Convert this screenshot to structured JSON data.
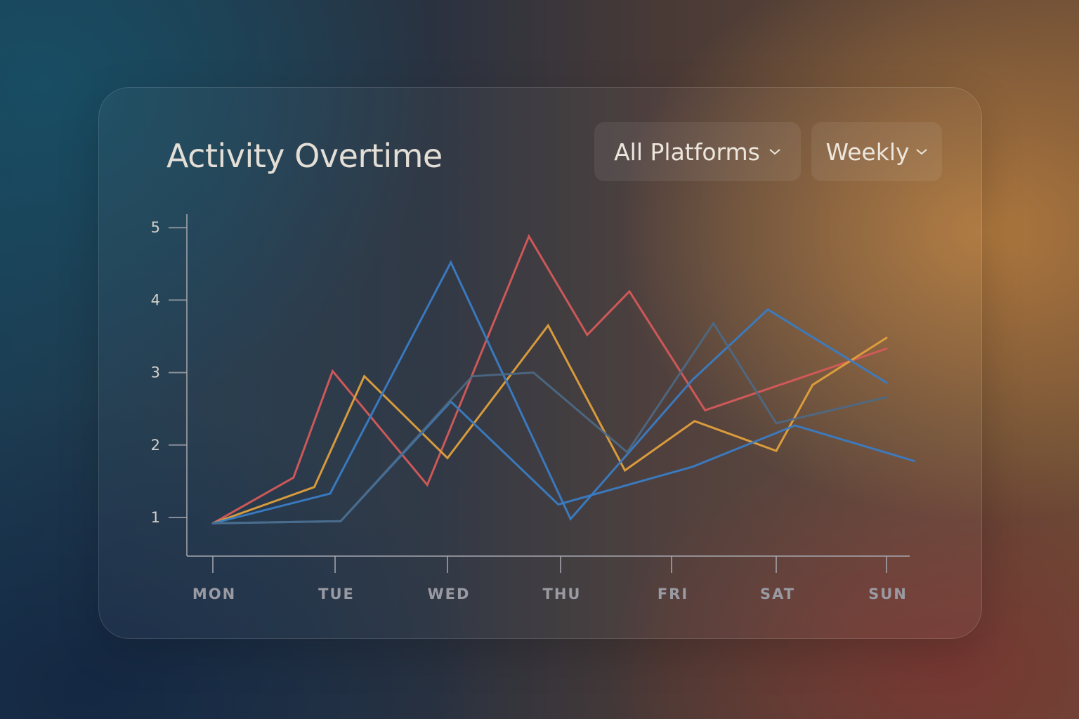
{
  "header": {
    "title": "Activity Overtime"
  },
  "filters": {
    "platform": {
      "selected": "All Platforms",
      "icon": "chevron-down-icon"
    },
    "period": {
      "selected": "Weekly",
      "icon": "chevron-down-icon"
    }
  },
  "colors": {
    "red": "#d55a5a",
    "orange": "#e0a03c",
    "blue": "#3a7cc4",
    "steel": "#4d6a86",
    "axis": "#a8a8b0"
  },
  "chart_data": {
    "type": "line",
    "categories": [
      "MON",
      "TUE",
      "WED",
      "THU",
      "FRI",
      "SAT",
      "SUN"
    ],
    "y_ticks": [
      1,
      2,
      3,
      4,
      5
    ],
    "ylim": [
      0.45,
      5.2
    ],
    "grid": false,
    "legend": "none",
    "series": [
      {
        "color": "#d55a5a",
        "x": [
          0,
          0.66,
          0.98,
          1.82,
          2.72,
          3.24,
          3.62,
          4.32,
          6.0
        ],
        "values": [
          0.92,
          1.55,
          3.02,
          1.45,
          4.88,
          3.52,
          4.12,
          2.48,
          3.33
        ]
      },
      {
        "color": "#e0a03c",
        "x": [
          0,
          0.83,
          1.26,
          2.0,
          2.89,
          3.58,
          4.22,
          5.0,
          5.33,
          6.0
        ],
        "values": [
          0.92,
          1.42,
          2.95,
          1.82,
          3.65,
          1.65,
          2.33,
          1.92,
          2.83,
          3.48
        ]
      },
      {
        "color": "#3a7cc4",
        "x": [
          0,
          0.96,
          2.03,
          3.09,
          4.2,
          4.92,
          6.0
        ],
        "values": [
          0.92,
          1.33,
          4.52,
          0.98,
          2.9,
          3.87,
          2.86
        ]
      },
      {
        "color": "#3a7cc4",
        "x": [
          0,
          1.05,
          2.03,
          2.98,
          4.2,
          5.17,
          6.25
        ],
        "values": [
          0.92,
          0.95,
          2.6,
          1.18,
          1.7,
          2.27,
          1.78
        ]
      },
      {
        "color": "#4d6a86",
        "x": [
          0,
          1.05,
          2.22,
          2.76,
          3.6,
          4.4,
          5.0,
          6.0
        ],
        "values": [
          0.92,
          0.95,
          2.95,
          3.0,
          1.9,
          3.68,
          2.3,
          2.66
        ]
      }
    ]
  }
}
